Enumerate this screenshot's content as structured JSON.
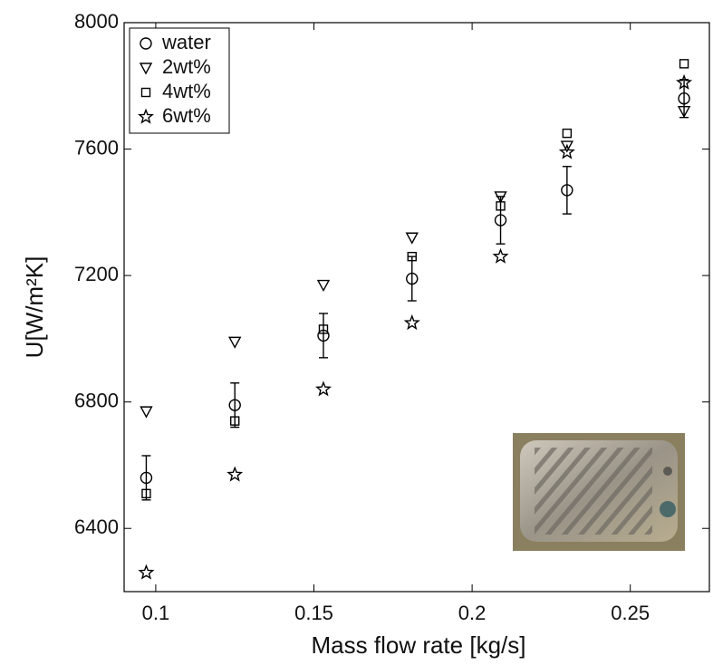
{
  "chart_data": {
    "type": "scatter",
    "xlabel": "Mass flow rate [kg/s]",
    "ylabel": "U[W/m²K]",
    "xlim": [
      0.09,
      0.275
    ],
    "xticks": [
      0.1,
      0.15,
      0.2,
      0.25
    ],
    "ylim": [
      6200,
      8000
    ],
    "yticks": [
      6400,
      6800,
      7200,
      7600,
      8000
    ],
    "legend": "upper left",
    "x": [
      0.097,
      0.125,
      0.153,
      0.181,
      0.209,
      0.23,
      0.267
    ],
    "series": [
      {
        "name": "water",
        "color": "#000000",
        "marker": "circle",
        "values": [
          6560,
          6790,
          7010,
          7190,
          7375,
          7470,
          7760
        ],
        "errors": [
          70,
          70,
          70,
          70,
          75,
          75,
          60
        ]
      },
      {
        "name": "2wt%",
        "color": "#000000",
        "marker": "triangle-down",
        "values": [
          6770,
          6990,
          7170,
          7320,
          7450,
          7610,
          7720
        ]
      },
      {
        "name": "4wt%",
        "color": "#000000",
        "marker": "square",
        "values": [
          6510,
          6740,
          7030,
          7260,
          7420,
          7650,
          7870
        ]
      },
      {
        "name": "6wt%",
        "color": "#000000",
        "marker": "star",
        "values": [
          6260,
          6570,
          6840,
          7050,
          7260,
          7590,
          7810
        ]
      }
    ]
  }
}
